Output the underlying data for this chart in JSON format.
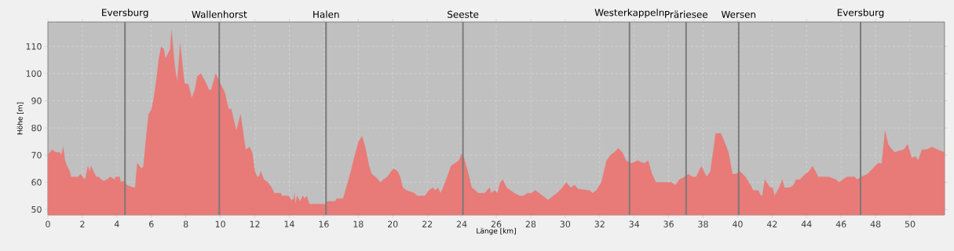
{
  "chart_data": {
    "type": "area",
    "xlabel": "Länge [km]",
    "ylabel": "Höhe [m]",
    "color": "#e87a78",
    "grid": true,
    "xlim": [
      0,
      52
    ],
    "ylim": [
      48,
      119
    ],
    "xticks": [
      0,
      2,
      4,
      6,
      8,
      10,
      12,
      14,
      16,
      18,
      20,
      22,
      24,
      26,
      28,
      30,
      32,
      34,
      36,
      38,
      40,
      42,
      44,
      46,
      48,
      50
    ],
    "yticks": [
      50,
      60,
      70,
      80,
      90,
      100,
      110
    ],
    "x": [
      0,
      0.24,
      0.47,
      0.69,
      0.78,
      0.89,
      0.99,
      1.11,
      1.27,
      1.34,
      1.75,
      1.9,
      2.02,
      2.12,
      2.2,
      2.32,
      2.42,
      2.5,
      2.65,
      2.8,
      2.95,
      3.1,
      3.25,
      3.4,
      3.63,
      3.86,
      3.93,
      4.16,
      4.23,
      4.38,
      4.58,
      4.76,
      4.98,
      5.06,
      5.18,
      5.44,
      5.54,
      5.69,
      5.84,
      6.01,
      6.14,
      6.3,
      6.42,
      6.57,
      6.72,
      6.82,
      7.09,
      7.17,
      7.35,
      7.5,
      7.67,
      7.92,
      8.15,
      8.34,
      8.52,
      8.67,
      8.87,
      9.13,
      9.35,
      9.47,
      9.73,
      10.03,
      10.26,
      10.48,
      10.63,
      10.93,
      11.17,
      11.47,
      11.7,
      11.85,
      12,
      12.15,
      12.23,
      12.35,
      12.53,
      12.75,
      12.98,
      13.13,
      13.5,
      13.58,
      13.96,
      14.11,
      14.26,
      14.3,
      14.36,
      14.45,
      14.63,
      14.78,
      14.9,
      15.01,
      15.16,
      16.07,
      16.22,
      16.67,
      16.75,
      17.12,
      17.35,
      17.57,
      17.8,
      18.02,
      18.22,
      18.4,
      18.63,
      18.78,
      19,
      19.15,
      19.3,
      19.45,
      19.68,
      19.91,
      20.06,
      20.28,
      20.43,
      20.58,
      20.81,
      21.26,
      21.41,
      21.86,
      22.09,
      22.32,
      22.47,
      22.62,
      22.77,
      22.92,
      23.22,
      23.37,
      23.6,
      23.83,
      24,
      24.13,
      24.35,
      24.58,
      24.8,
      24.95,
      25.33,
      25.47,
      25.62,
      25.7,
      25.92,
      26.08,
      26.23,
      26.38,
      26.6,
      26.83,
      27.05,
      27.36,
      27.58,
      27.81,
      28.05,
      28.26,
      28.49,
      28.7,
      29.01,
      29.31,
      29.53,
      29.83,
      30.07,
      30.3,
      30.54,
      30.75,
      31.42,
      31.58,
      31.8,
      32.1,
      32.4,
      32.63,
      32.85,
      33.08,
      33.31,
      33.53,
      33.83,
      34.2,
      34.58,
      34.81,
      35.04,
      35.26,
      36.17,
      36.39,
      36.62,
      36.92,
      37.14,
      37.37,
      37.6,
      37.9,
      38.2,
      38.42,
      38.73,
      39.02,
      39.17,
      39.47,
      39.7,
      39.85,
      40.15,
      40.45,
      40.75,
      40.9,
      41.2,
      41.36,
      41.43,
      41.58,
      41.88,
      42.03,
      42.14,
      42.41,
      42.59,
      42.71,
      43.01,
      43.24,
      43.39,
      43.61,
      43.92,
      44.14,
      44.34,
      44.52,
      44.67,
      44.82,
      45.27,
      45.72,
      45.87,
      46.1,
      46.33,
      46.78,
      46.93,
      47.15,
      47.53,
      47.68,
      48.13,
      48.36,
      48.55,
      48.73,
      48.96,
      49.11,
      49.34,
      49.64,
      49.86,
      50.09,
      50.32,
      50.47,
      50.69,
      50.92,
      51.29,
      51.6,
      52
    ],
    "values": [
      70,
      72,
      71,
      71,
      70,
      73,
      68,
      66,
      64,
      62,
      62,
      63,
      62,
      61,
      62,
      66,
      64,
      66,
      64,
      62,
      62,
      61,
      60.5,
      61,
      62,
      61,
      62,
      62,
      60,
      60.5,
      59,
      58.5,
      58,
      58,
      67,
      65,
      66,
      76,
      85,
      87,
      91,
      98,
      105,
      110,
      109,
      105.5,
      109,
      116,
      103,
      97,
      111,
      96.5,
      96,
      91,
      94,
      99,
      100,
      97,
      94,
      94,
      100,
      96,
      93,
      87,
      87,
      79,
      85,
      72,
      73,
      71,
      64,
      62,
      62,
      64,
      61,
      60,
      58,
      56,
      56,
      55,
      55,
      53.5,
      54,
      56,
      52,
      55,
      53,
      55,
      54,
      55,
      52,
      52,
      53,
      53,
      54,
      54,
      59,
      64,
      70,
      75,
      77,
      73,
      66,
      63,
      62,
      61,
      60,
      61,
      62,
      64,
      65,
      64,
      62,
      58,
      57,
      56,
      55,
      55,
      57,
      58,
      57,
      58,
      56,
      58,
      63,
      66,
      67,
      68,
      70.5,
      69,
      64,
      58,
      57,
      56,
      56,
      57,
      58,
      56,
      57,
      56,
      60,
      61,
      58,
      57,
      56,
      55,
      55,
      56,
      56,
      57,
      56,
      55,
      53.5,
      55,
      56,
      58,
      60,
      58,
      59,
      57.5,
      57,
      56,
      57,
      60,
      68,
      70,
      71,
      72.5,
      71,
      68,
      67,
      68,
      67,
      68,
      63,
      60,
      60,
      59,
      61,
      62,
      63,
      62,
      62,
      66,
      62,
      64,
      78,
      78,
      76,
      71,
      63,
      63,
      64,
      62,
      59,
      57,
      57,
      55,
      55,
      61,
      58,
      58,
      55,
      58,
      61,
      58,
      58,
      59,
      61,
      61,
      63,
      64,
      66,
      64,
      62,
      62,
      62,
      61,
      60,
      61,
      62,
      62,
      61,
      62,
      63,
      64,
      67,
      67,
      79,
      74,
      72,
      71,
      71.5,
      72,
      74,
      69,
      69.5,
      68,
      72,
      72,
      73,
      72,
      71
    ],
    "ref_lines": [
      {
        "axis": "x",
        "value": 4.47,
        "label": "Eversburg",
        "color": "#7a7a7a"
      },
      {
        "axis": "x",
        "value": 9.94,
        "label": "Wallenhorst",
        "color": "#7a7a7a"
      },
      {
        "axis": "x",
        "value": 16.13,
        "label": "Halen",
        "color": "#7a7a7a"
      },
      {
        "axis": "x",
        "value": 24.07,
        "label": "Seeste",
        "color": "#7a7a7a"
      },
      {
        "axis": "x",
        "value": 33.73,
        "label": "Westerkappeln",
        "color": "#7a7a7a"
      },
      {
        "axis": "x",
        "value": 37.01,
        "label": "Präriesee",
        "color": "#7a7a7a"
      },
      {
        "axis": "x",
        "value": 40.06,
        "label": "Wersen",
        "color": "#7a7a7a"
      },
      {
        "axis": "x",
        "value": 47.13,
        "label": "Eversburg",
        "color": "#7a7a7a"
      }
    ]
  }
}
